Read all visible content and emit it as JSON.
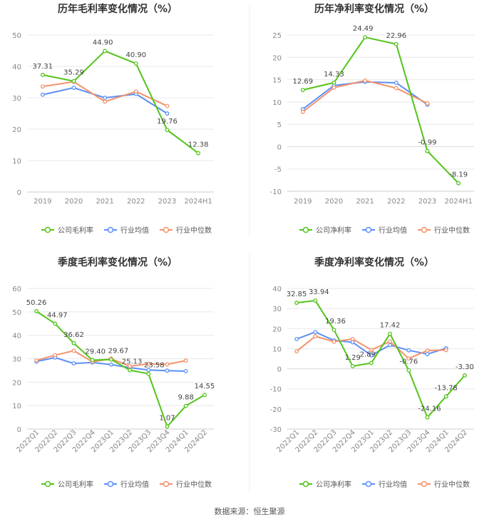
{
  "source_text": "数据来源：恒生聚源",
  "colors": {
    "company": "#52c41a",
    "industry_avg": "#5b8ff9",
    "industry_median": "#f4926b",
    "grid": "#e8e8e8",
    "axis_text": "#888888",
    "title": "#333333",
    "divider": "#eeeeee"
  },
  "legend": {
    "gross_company": "公司毛利率",
    "net_company": "公司净利率",
    "avg": "行业均值",
    "median": "行业中位数"
  },
  "chart_data": [
    {
      "type": "line",
      "title": "历年毛利率变化情况（%）",
      "categories": [
        "2019",
        "2020",
        "2021",
        "2022",
        "2023",
        "2024H1"
      ],
      "ylim": [
        0,
        50
      ],
      "yticks": [
        0,
        10,
        20,
        30,
        40,
        50
      ],
      "ytick_labels": [
        "0",
        "10",
        "20",
        "30",
        "40",
        "50"
      ],
      "rotate_x": false,
      "series": [
        {
          "name": "公司毛利率",
          "key": "company",
          "values": [
            37.31,
            35.29,
            44.9,
            40.9,
            19.76,
            12.38
          ],
          "labels": [
            "37.31",
            "35.29",
            "44.90",
            "40.90",
            "19.76",
            "12.38"
          ]
        },
        {
          "name": "行业均值",
          "key": "industry_avg",
          "values": [
            31.0,
            33.2,
            30.0,
            31.2,
            25.0,
            null
          ]
        },
        {
          "name": "行业中位数",
          "key": "industry_median",
          "values": [
            33.6,
            35.1,
            28.8,
            32.0,
            27.4,
            null
          ]
        }
      ]
    },
    {
      "type": "line",
      "title": "历年净利率变化情况（%）",
      "categories": [
        "2019",
        "2020",
        "2021",
        "2022",
        "2023",
        "2024H1"
      ],
      "ylim": [
        -10,
        25
      ],
      "yticks": [
        -10,
        -5,
        0,
        5,
        10,
        15,
        20,
        25
      ],
      "ytick_labels": [
        "-10",
        "-5",
        "0",
        "5",
        "10",
        "15",
        "20",
        "25"
      ],
      "rotate_x": false,
      "series": [
        {
          "name": "公司净利率",
          "key": "company",
          "values": [
            12.69,
            14.33,
            24.49,
            22.96,
            -0.99,
            -8.19
          ],
          "labels": [
            "12.69",
            "14.33",
            "24.49",
            "22.96",
            "-0.99",
            "-8.19"
          ]
        },
        {
          "name": "行业均值",
          "key": "industry_avg",
          "values": [
            8.4,
            13.7,
            14.5,
            14.3,
            9.4,
            null
          ]
        },
        {
          "name": "行业中位数",
          "key": "industry_median",
          "values": [
            7.8,
            13.2,
            14.8,
            13.1,
            9.7,
            null
          ]
        }
      ]
    },
    {
      "type": "line",
      "title": "季度毛利率变化情况（%）",
      "categories": [
        "2022Q1",
        "2022Q2",
        "2022Q3",
        "2022Q4",
        "2023Q1",
        "2023Q2",
        "2023Q3",
        "2023Q4",
        "2024Q1",
        "2024Q2"
      ],
      "ylim": [
        0,
        60
      ],
      "yticks": [
        0,
        10,
        20,
        30,
        40,
        50,
        60
      ],
      "ytick_labels": [
        "0",
        "10",
        "20",
        "30",
        "40",
        "50",
        "60"
      ],
      "rotate_x": true,
      "series": [
        {
          "name": "公司毛利率",
          "key": "company",
          "values": [
            50.26,
            44.97,
            36.62,
            29.4,
            29.67,
            25.13,
            23.58,
            1.07,
            9.88,
            14.55
          ],
          "labels": [
            "50.26",
            "44.97",
            "36.62",
            "29.40",
            "29.67",
            "25.13",
            "23.58",
            "1.07",
            "9.88",
            "14.55"
          ]
        },
        {
          "name": "行业均值",
          "key": "industry_avg",
          "values": [
            28.8,
            30.5,
            28.0,
            28.4,
            27.5,
            26.2,
            25.2,
            24.9,
            24.7,
            null
          ]
        },
        {
          "name": "行业中位数",
          "key": "industry_median",
          "values": [
            29.3,
            31.5,
            33.4,
            28.7,
            30.0,
            26.8,
            27.8,
            27.6,
            29.2,
            null
          ]
        }
      ]
    },
    {
      "type": "line",
      "title": "季度净利率变化情况（%）",
      "categories": [
        "2022Q1",
        "2022Q2",
        "2022Q3",
        "2022Q4",
        "2023Q1",
        "2023Q2",
        "2023Q3",
        "2023Q4",
        "2024Q1",
        "2024Q2"
      ],
      "ylim": [
        -30,
        40
      ],
      "yticks": [
        -30,
        -20,
        -10,
        0,
        10,
        20,
        30,
        40
      ],
      "ytick_labels": [
        "-30",
        "-20",
        "-10",
        "0",
        "10",
        "20",
        "30",
        "40"
      ],
      "rotate_x": true,
      "series": [
        {
          "name": "公司净利率",
          "key": "company",
          "values": [
            32.85,
            33.94,
            19.36,
            1.29,
            2.89,
            17.42,
            -0.76,
            -24.16,
            -13.78,
            -3.3
          ],
          "labels": [
            "32.85",
            "33.94",
            "19.36",
            "1.29",
            "2.89",
            "17.42",
            "-0.76",
            "-24.16",
            "-13.78",
            "-3.30"
          ]
        },
        {
          "name": "行业均值",
          "key": "industry_avg",
          "values": [
            14.8,
            18.3,
            14.1,
            13.2,
            6.7,
            11.8,
            9.2,
            7.3,
            10.2,
            null
          ]
        },
        {
          "name": "行业中位数",
          "key": "industry_median",
          "values": [
            8.7,
            16.2,
            13.5,
            14.8,
            9.4,
            13.6,
            5.1,
            9.1,
            9.3,
            null
          ]
        }
      ]
    }
  ]
}
